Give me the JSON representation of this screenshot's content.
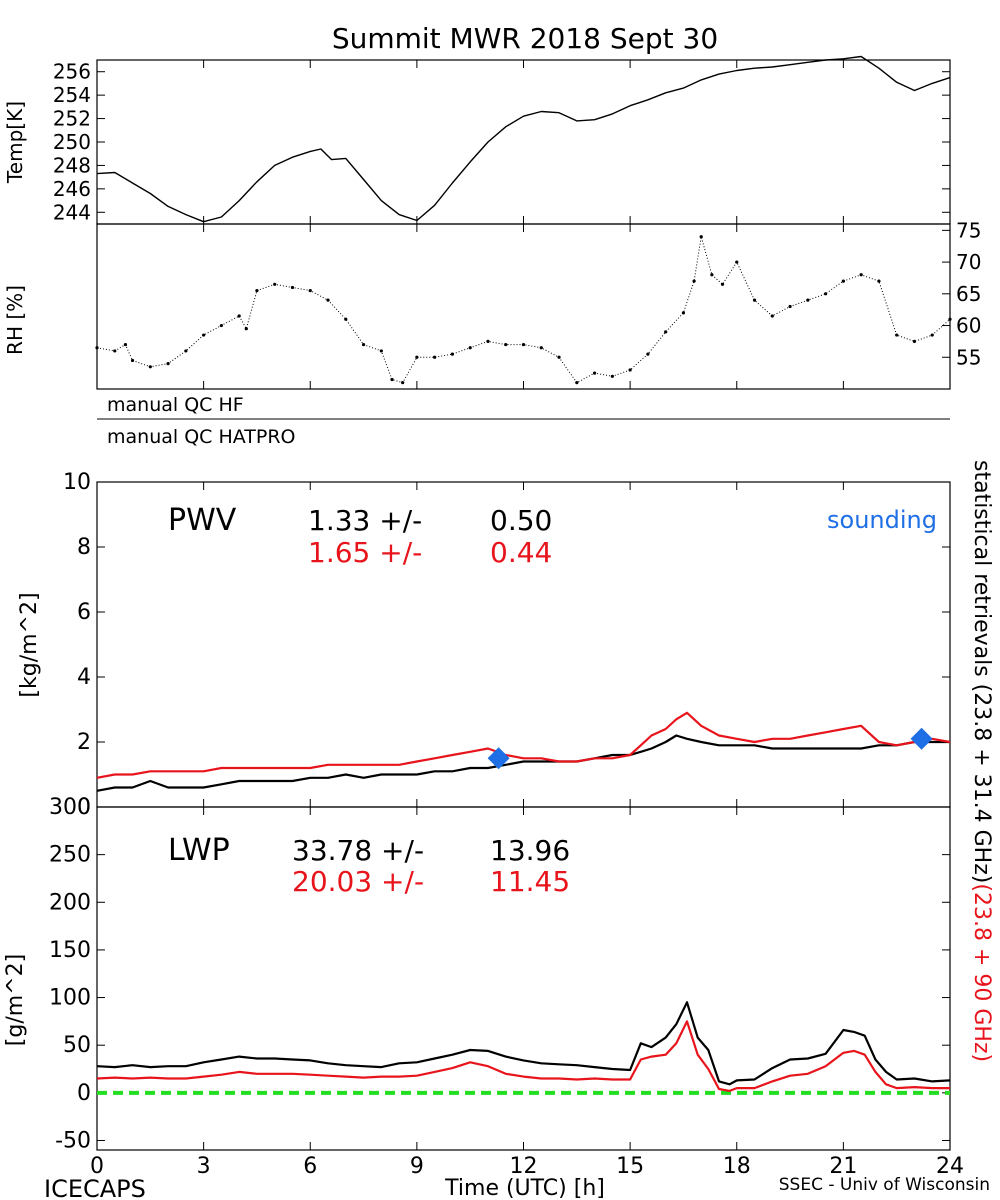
{
  "figure": {
    "title": "Summit MWR 2018 Sept 30",
    "footer_left": "ICECAPS",
    "footer_right": "SSEC - Univ of Wisconsin"
  },
  "colors": {
    "black_series": "#000000",
    "red_series": "#e8141c",
    "sounding": "#1e6fe6",
    "zero_line": "#22dd22"
  },
  "qc": {
    "hf": "manual QC HF",
    "hatpro": "manual QC HATPRO"
  },
  "right_labels": {
    "black": "statistical retrievals (23.8 + 31.4 GHz)",
    "red": "(23.8 + 90 GHz)"
  },
  "chart_data": [
    {
      "type": "line",
      "ylabel": "Temp[K]",
      "ylim": [
        243,
        257
      ],
      "yticks": [
        "244",
        "246",
        "248",
        "250",
        "252",
        "254",
        "256"
      ],
      "xlim": [
        0,
        24
      ],
      "series": [
        {
          "color": "#000000",
          "x": [
            0,
            0.5,
            1,
            1.5,
            2,
            2.5,
            3,
            3.5,
            4,
            4.5,
            5,
            5.5,
            6,
            6.3,
            6.6,
            7,
            7.5,
            8,
            8.5,
            9,
            9.5,
            10,
            10.5,
            11,
            11.5,
            12,
            12.5,
            13,
            13.5,
            14,
            14.5,
            15,
            15.5,
            16,
            16.5,
            17,
            17.5,
            18,
            18.5,
            19,
            19.5,
            20,
            20.5,
            21,
            21.5,
            22,
            22.5,
            23,
            23.5,
            24
          ],
          "y": [
            247.3,
            247.4,
            246.5,
            245.6,
            244.5,
            243.8,
            243.2,
            243.6,
            245.0,
            246.6,
            248.0,
            248.7,
            249.2,
            249.4,
            248.5,
            248.6,
            246.8,
            245.0,
            243.8,
            243.3,
            244.6,
            246.5,
            248.3,
            250.0,
            251.3,
            252.2,
            252.6,
            252.5,
            251.8,
            251.9,
            252.4,
            253.1,
            253.6,
            254.2,
            254.6,
            255.3,
            255.8,
            256.1,
            256.3,
            256.4,
            256.6,
            256.8,
            257.0,
            257.1,
            257.3,
            256.3,
            255.1,
            254.4,
            255.0,
            255.5
          ]
        }
      ]
    },
    {
      "type": "scatter",
      "ylabel": "RH [%]",
      "ylim": [
        50,
        76
      ],
      "yticks": [
        "55",
        "60",
        "65",
        "70",
        "75"
      ],
      "xlim": [
        0,
        24
      ],
      "series": [
        {
          "color": "#000000",
          "x": [
            0,
            0.5,
            0.8,
            1,
            1.5,
            2,
            2.5,
            3,
            3.5,
            4,
            4.2,
            4.5,
            5,
            5.5,
            6,
            6.5,
            7,
            7.5,
            8,
            8.3,
            8.6,
            9,
            9.5,
            10,
            10.5,
            11,
            11.5,
            12,
            12.5,
            13,
            13.5,
            14,
            14.5,
            15,
            15.5,
            16,
            16.5,
            16.8,
            17,
            17.3,
            17.6,
            18,
            18.5,
            19,
            19.5,
            20,
            20.5,
            21,
            21.5,
            22,
            22.5,
            23,
            23.5,
            24
          ],
          "y": [
            56.5,
            56.0,
            57.0,
            54.5,
            53.5,
            54.0,
            56.0,
            58.5,
            60.0,
            61.5,
            59.5,
            65.5,
            66.5,
            66.0,
            65.5,
            64.0,
            61.0,
            57.0,
            56.0,
            51.5,
            51.0,
            55.0,
            55.0,
            55.5,
            56.5,
            57.5,
            57.0,
            57.0,
            56.5,
            55.0,
            51.0,
            52.5,
            52.0,
            53.0,
            55.5,
            59.0,
            62.0,
            67.0,
            74.0,
            68.0,
            66.5,
            70.0,
            64.0,
            61.5,
            63.0,
            64.0,
            65.0,
            67.0,
            68.0,
            67.0,
            58.5,
            57.5,
            58.5,
            61.0
          ]
        }
      ]
    },
    {
      "type": "line",
      "ylabel": "[kg/m^2]",
      "ylim": [
        0,
        10
      ],
      "yticks": [
        "0",
        "2",
        "4",
        "6",
        "8",
        "10"
      ],
      "xlim": [
        0,
        24
      ],
      "annotations": {
        "name": "PWV",
        "black_stat": "1.33 +/-",
        "black_err": "0.50",
        "red_stat": "1.65 +/-",
        "red_err": "0.44",
        "sounding_label": "sounding"
      },
      "series": [
        {
          "color": "#000000",
          "x": [
            0,
            0.5,
            1,
            1.5,
            2,
            2.5,
            3,
            3.5,
            4,
            4.5,
            5,
            5.5,
            6,
            6.5,
            7,
            7.5,
            8,
            8.5,
            9,
            9.5,
            10,
            10.5,
            11,
            11.5,
            12,
            12.5,
            13,
            13.5,
            14,
            14.5,
            15,
            15.3,
            15.6,
            16,
            16.3,
            16.6,
            17,
            17.5,
            18,
            18.5,
            19,
            19.5,
            20,
            20.5,
            21,
            21.5,
            22,
            22.5,
            23,
            23.5,
            24
          ],
          "y": [
            0.5,
            0.6,
            0.6,
            0.8,
            0.6,
            0.6,
            0.6,
            0.7,
            0.8,
            0.8,
            0.8,
            0.8,
            0.9,
            0.9,
            1.0,
            0.9,
            1.0,
            1.0,
            1.0,
            1.1,
            1.1,
            1.2,
            1.2,
            1.3,
            1.4,
            1.4,
            1.4,
            1.4,
            1.5,
            1.6,
            1.6,
            1.7,
            1.8,
            2.0,
            2.2,
            2.1,
            2.0,
            1.9,
            1.9,
            1.9,
            1.8,
            1.8,
            1.8,
            1.8,
            1.8,
            1.8,
            1.9,
            1.9,
            2.0,
            2.0,
            2.0
          ]
        },
        {
          "color": "#e8141c",
          "x": [
            0,
            0.5,
            1,
            1.5,
            2,
            2.5,
            3,
            3.5,
            4,
            4.5,
            5,
            5.5,
            6,
            6.5,
            7,
            7.5,
            8,
            8.5,
            9,
            9.5,
            10,
            10.5,
            11,
            11.5,
            12,
            12.5,
            13,
            13.5,
            14,
            14.5,
            15,
            15.3,
            15.6,
            16,
            16.3,
            16.6,
            17,
            17.5,
            18,
            18.5,
            19,
            19.5,
            20,
            20.5,
            21,
            21.5,
            22,
            22.5,
            23,
            23.5,
            24
          ],
          "y": [
            0.9,
            1.0,
            1.0,
            1.1,
            1.1,
            1.1,
            1.1,
            1.2,
            1.2,
            1.2,
            1.2,
            1.2,
            1.2,
            1.3,
            1.3,
            1.3,
            1.3,
            1.3,
            1.4,
            1.5,
            1.6,
            1.7,
            1.8,
            1.6,
            1.5,
            1.5,
            1.4,
            1.4,
            1.5,
            1.5,
            1.6,
            1.9,
            2.2,
            2.4,
            2.7,
            2.9,
            2.5,
            2.2,
            2.1,
            2.0,
            2.1,
            2.1,
            2.2,
            2.3,
            2.4,
            2.5,
            2.0,
            1.9,
            2.0,
            2.1,
            2.0
          ]
        }
      ],
      "sounding": {
        "x": [
          11.3,
          23.2
        ],
        "y": [
          1.5,
          2.1
        ]
      }
    },
    {
      "type": "line",
      "ylabel": "[g/m^2]",
      "ylim": [
        -60,
        300
      ],
      "yticks": [
        "-50",
        "0",
        "50",
        "100",
        "150",
        "200",
        "250",
        "300"
      ],
      "xlim": [
        0,
        24
      ],
      "xticks": [
        "0",
        "3",
        "6",
        "9",
        "12",
        "15",
        "18",
        "21",
        "24"
      ],
      "xlabel": "Time (UTC) [h]",
      "annotations": {
        "name": "LWP",
        "black_stat": "33.78 +/-",
        "black_err": "13.96",
        "red_stat": "20.03 +/-",
        "red_err": "11.45"
      },
      "zero_line": 0,
      "series": [
        {
          "color": "#000000",
          "x": [
            0,
            0.5,
            1,
            1.5,
            2,
            2.5,
            3,
            3.5,
            4,
            4.5,
            5,
            5.5,
            6,
            6.5,
            7,
            7.5,
            8,
            8.5,
            9,
            9.5,
            10,
            10.5,
            11,
            11.5,
            12,
            12.5,
            13,
            13.5,
            14,
            14.5,
            15,
            15.3,
            15.6,
            16,
            16.3,
            16.6,
            16.9,
            17.2,
            17.5,
            17.8,
            18,
            18.5,
            19,
            19.5,
            20,
            20.5,
            21,
            21.3,
            21.6,
            21.9,
            22.2,
            22.5,
            23,
            23.5,
            24
          ],
          "y": [
            28,
            27,
            29,
            27,
            28,
            28,
            32,
            35,
            38,
            36,
            36,
            35,
            34,
            31,
            29,
            28,
            27,
            31,
            32,
            36,
            40,
            45,
            44,
            38,
            34,
            31,
            30,
            29,
            27,
            25,
            24,
            52,
            48,
            58,
            72,
            95,
            58,
            45,
            12,
            9,
            13,
            14,
            26,
            35,
            36,
            41,
            66,
            64,
            60,
            35,
            22,
            14,
            15,
            12,
            13
          ]
        },
        {
          "color": "#e8141c",
          "x": [
            0,
            0.5,
            1,
            1.5,
            2,
            2.5,
            3,
            3.5,
            4,
            4.5,
            5,
            5.5,
            6,
            6.5,
            7,
            7.5,
            8,
            8.5,
            9,
            9.5,
            10,
            10.5,
            11,
            11.5,
            12,
            12.5,
            13,
            13.5,
            14,
            14.5,
            15,
            15.3,
            15.6,
            16,
            16.3,
            16.6,
            16.9,
            17.2,
            17.5,
            17.8,
            18,
            18.5,
            19,
            19.5,
            20,
            20.5,
            21,
            21.3,
            21.6,
            21.9,
            22.2,
            22.5,
            23,
            23.5,
            24
          ],
          "y": [
            15,
            16,
            15,
            16,
            15,
            15,
            17,
            19,
            22,
            20,
            20,
            20,
            19,
            18,
            17,
            16,
            17,
            17,
            18,
            22,
            26,
            32,
            28,
            20,
            17,
            15,
            15,
            14,
            15,
            14,
            14,
            35,
            38,
            40,
            52,
            75,
            40,
            25,
            4,
            2,
            5,
            5,
            12,
            18,
            20,
            28,
            42,
            44,
            40,
            22,
            9,
            5,
            6,
            5,
            5
          ]
        }
      ]
    }
  ]
}
